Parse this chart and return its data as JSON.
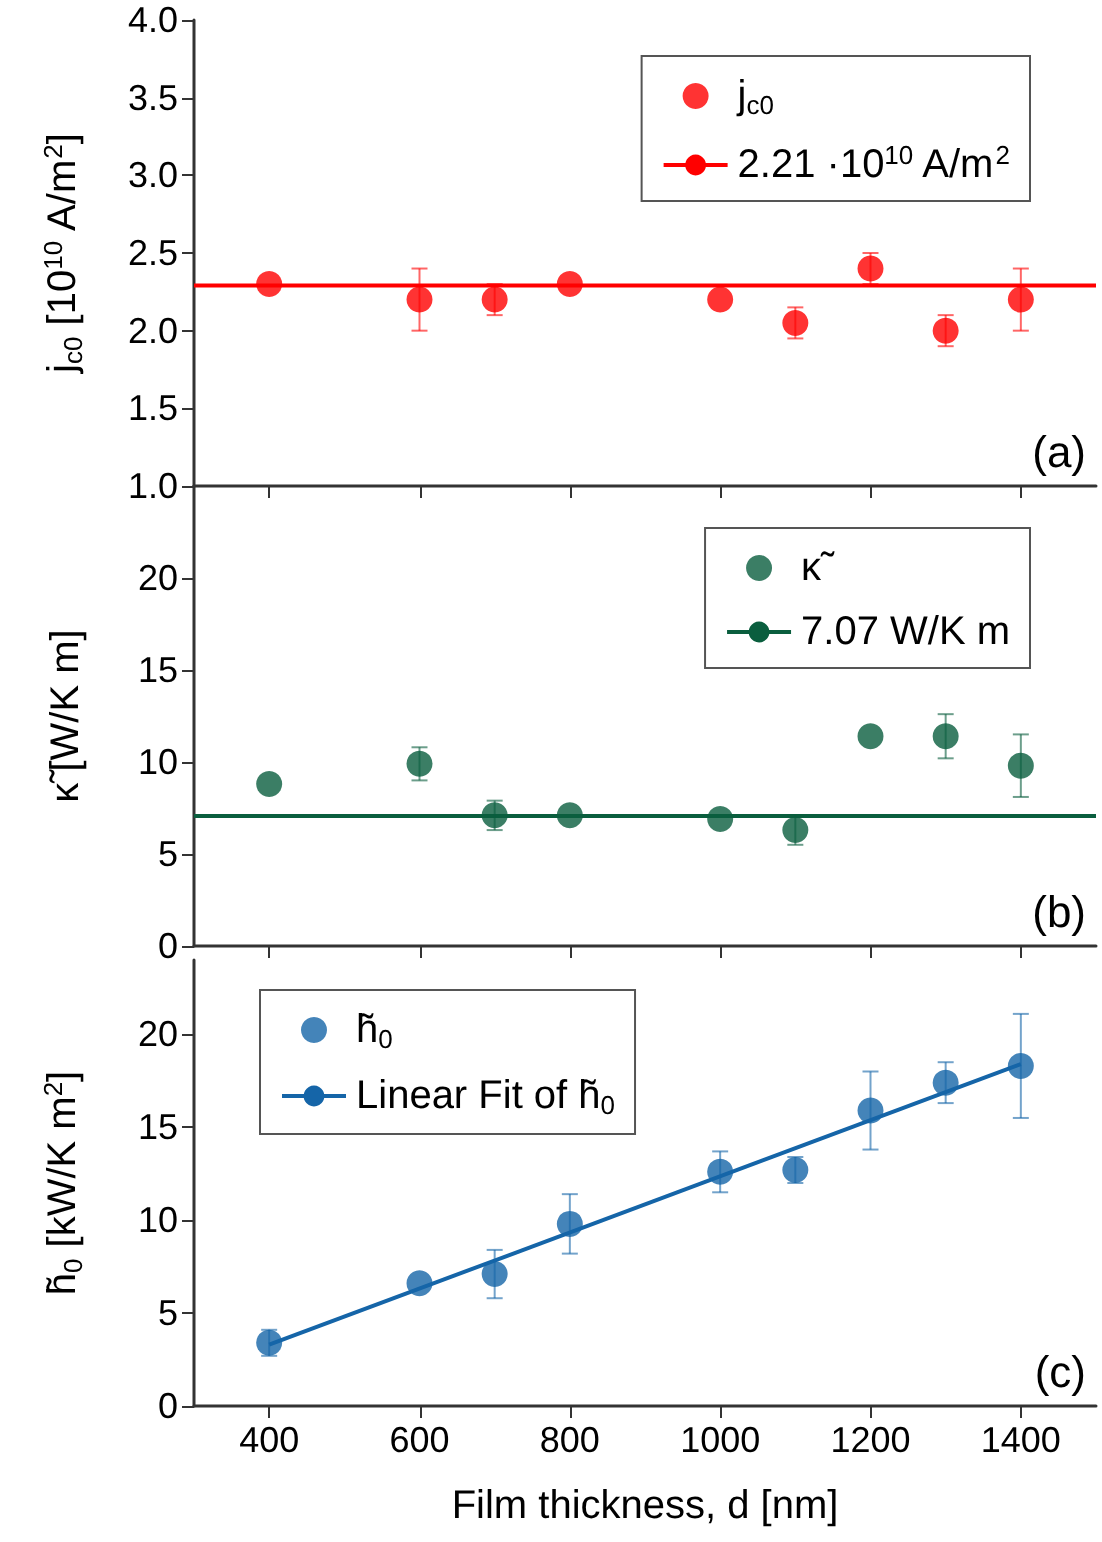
{
  "chart_data": [
    {
      "type": "scatter",
      "ylabel": "j$_{c0}$ [10$^{10}$ A/m$^{2}$]",
      "x": [
        400,
        600,
        700,
        800,
        1000,
        1100,
        1200,
        1300,
        1400
      ],
      "xlim": [
        300,
        1500
      ],
      "xticks": [
        400,
        600,
        800,
        1000,
        1200,
        1400
      ],
      "ylim": [
        1,
        4
      ],
      "yticks": [
        {
          "value": 1,
          "label": "1.0"
        },
        1.5,
        {
          "value": 2,
          "label": "2.0"
        },
        2.5,
        {
          "value": 3,
          "label": "3.0"
        },
        3.5,
        {
          "value": 4,
          "label": "4.0"
        }
      ],
      "tick_labels": "y",
      "legend": "top right",
      "marker": "circle",
      "grid": false,
      "annotations": [
        "(a)"
      ],
      "series": [
        {
          "name": "j$_{c0}$",
          "color": "#ff0000",
          "values": [
            2.3,
            2.2,
            2.2,
            2.3,
            2.2,
            2.05,
            2.4,
            2.0,
            2.2
          ],
          "errors": [
            null,
            0.2,
            0.1,
            null,
            null,
            0.1,
            0.1,
            0.1,
            0.2
          ]
        },
        {
          "name": "2.21 ·10$^{10}$ A/m$^{2}$",
          "type": "line",
          "color": "#ff0000",
          "x": [
            300,
            1500
          ],
          "values": [
            2.29,
            2.29
          ],
          "marker": "none"
        }
      ]
    },
    {
      "type": "scatter",
      "ylabel": "κ̃ [W/K m]",
      "x": [
        400,
        600,
        700,
        800,
        1000,
        1100,
        1200,
        1300,
        1400
      ],
      "xlim": [
        300,
        1500
      ],
      "xticks": [
        400,
        600,
        800,
        1000,
        1200,
        1400
      ],
      "ylim": [
        0,
        25
      ],
      "yticks": [
        0,
        5,
        10,
        15,
        20
      ],
      "tick_labels": "y",
      "legend": "top right",
      "marker": "circle",
      "grid": false,
      "annotations": [
        "(b)"
      ],
      "series": [
        {
          "name": "κ̃",
          "color": "#0a5e3e",
          "values": [
            8.8,
            9.9,
            7.1,
            7.1,
            6.9,
            6.3,
            11.4,
            11.4,
            9.8
          ],
          "errors": [
            null,
            0.9,
            0.8,
            null,
            null,
            0.8,
            null,
            1.2,
            1.7
          ]
        },
        {
          "name": "7.07 W/K m",
          "type": "line",
          "color": "#0a5e3e",
          "x": [
            300,
            1500
          ],
          "values": [
            7.07,
            7.07
          ],
          "marker": "none"
        }
      ]
    },
    {
      "type": "scatter",
      "xlabel": "Film thickness, d [nm]",
      "ylabel": "h̃$_{0}$ [kW/K m$^{2}$]",
      "x": [
        400,
        600,
        700,
        800,
        1000,
        1100,
        1200,
        1300,
        1400
      ],
      "xlim": [
        300,
        1500
      ],
      "xticks": [
        400,
        600,
        800,
        1000,
        1200,
        1400
      ],
      "ylim": [
        0,
        24
      ],
      "yticks": [
        0,
        5,
        10,
        15,
        20
      ],
      "legend": "top left",
      "marker": "circle",
      "grid": false,
      "annotations": [
        "(c)"
      ],
      "series": [
        {
          "name": "h̃$_{0}$",
          "color": "#1565a8",
          "values": [
            3.4,
            6.6,
            7.1,
            9.8,
            12.6,
            12.7,
            15.9,
            17.4,
            18.3
          ],
          "errors": [
            0.7,
            null,
            1.3,
            1.6,
            1.1,
            0.7,
            2.1,
            1.1,
            [
              15.5,
              21.1
            ]
          ]
        },
        {
          "name": "Linear Fit of h̃$_{0}$",
          "type": "line",
          "color": "#1565a8",
          "x": [
            400,
            1400
          ],
          "values": [
            3.3,
            18.4
          ],
          "marker": "none"
        }
      ]
    }
  ]
}
